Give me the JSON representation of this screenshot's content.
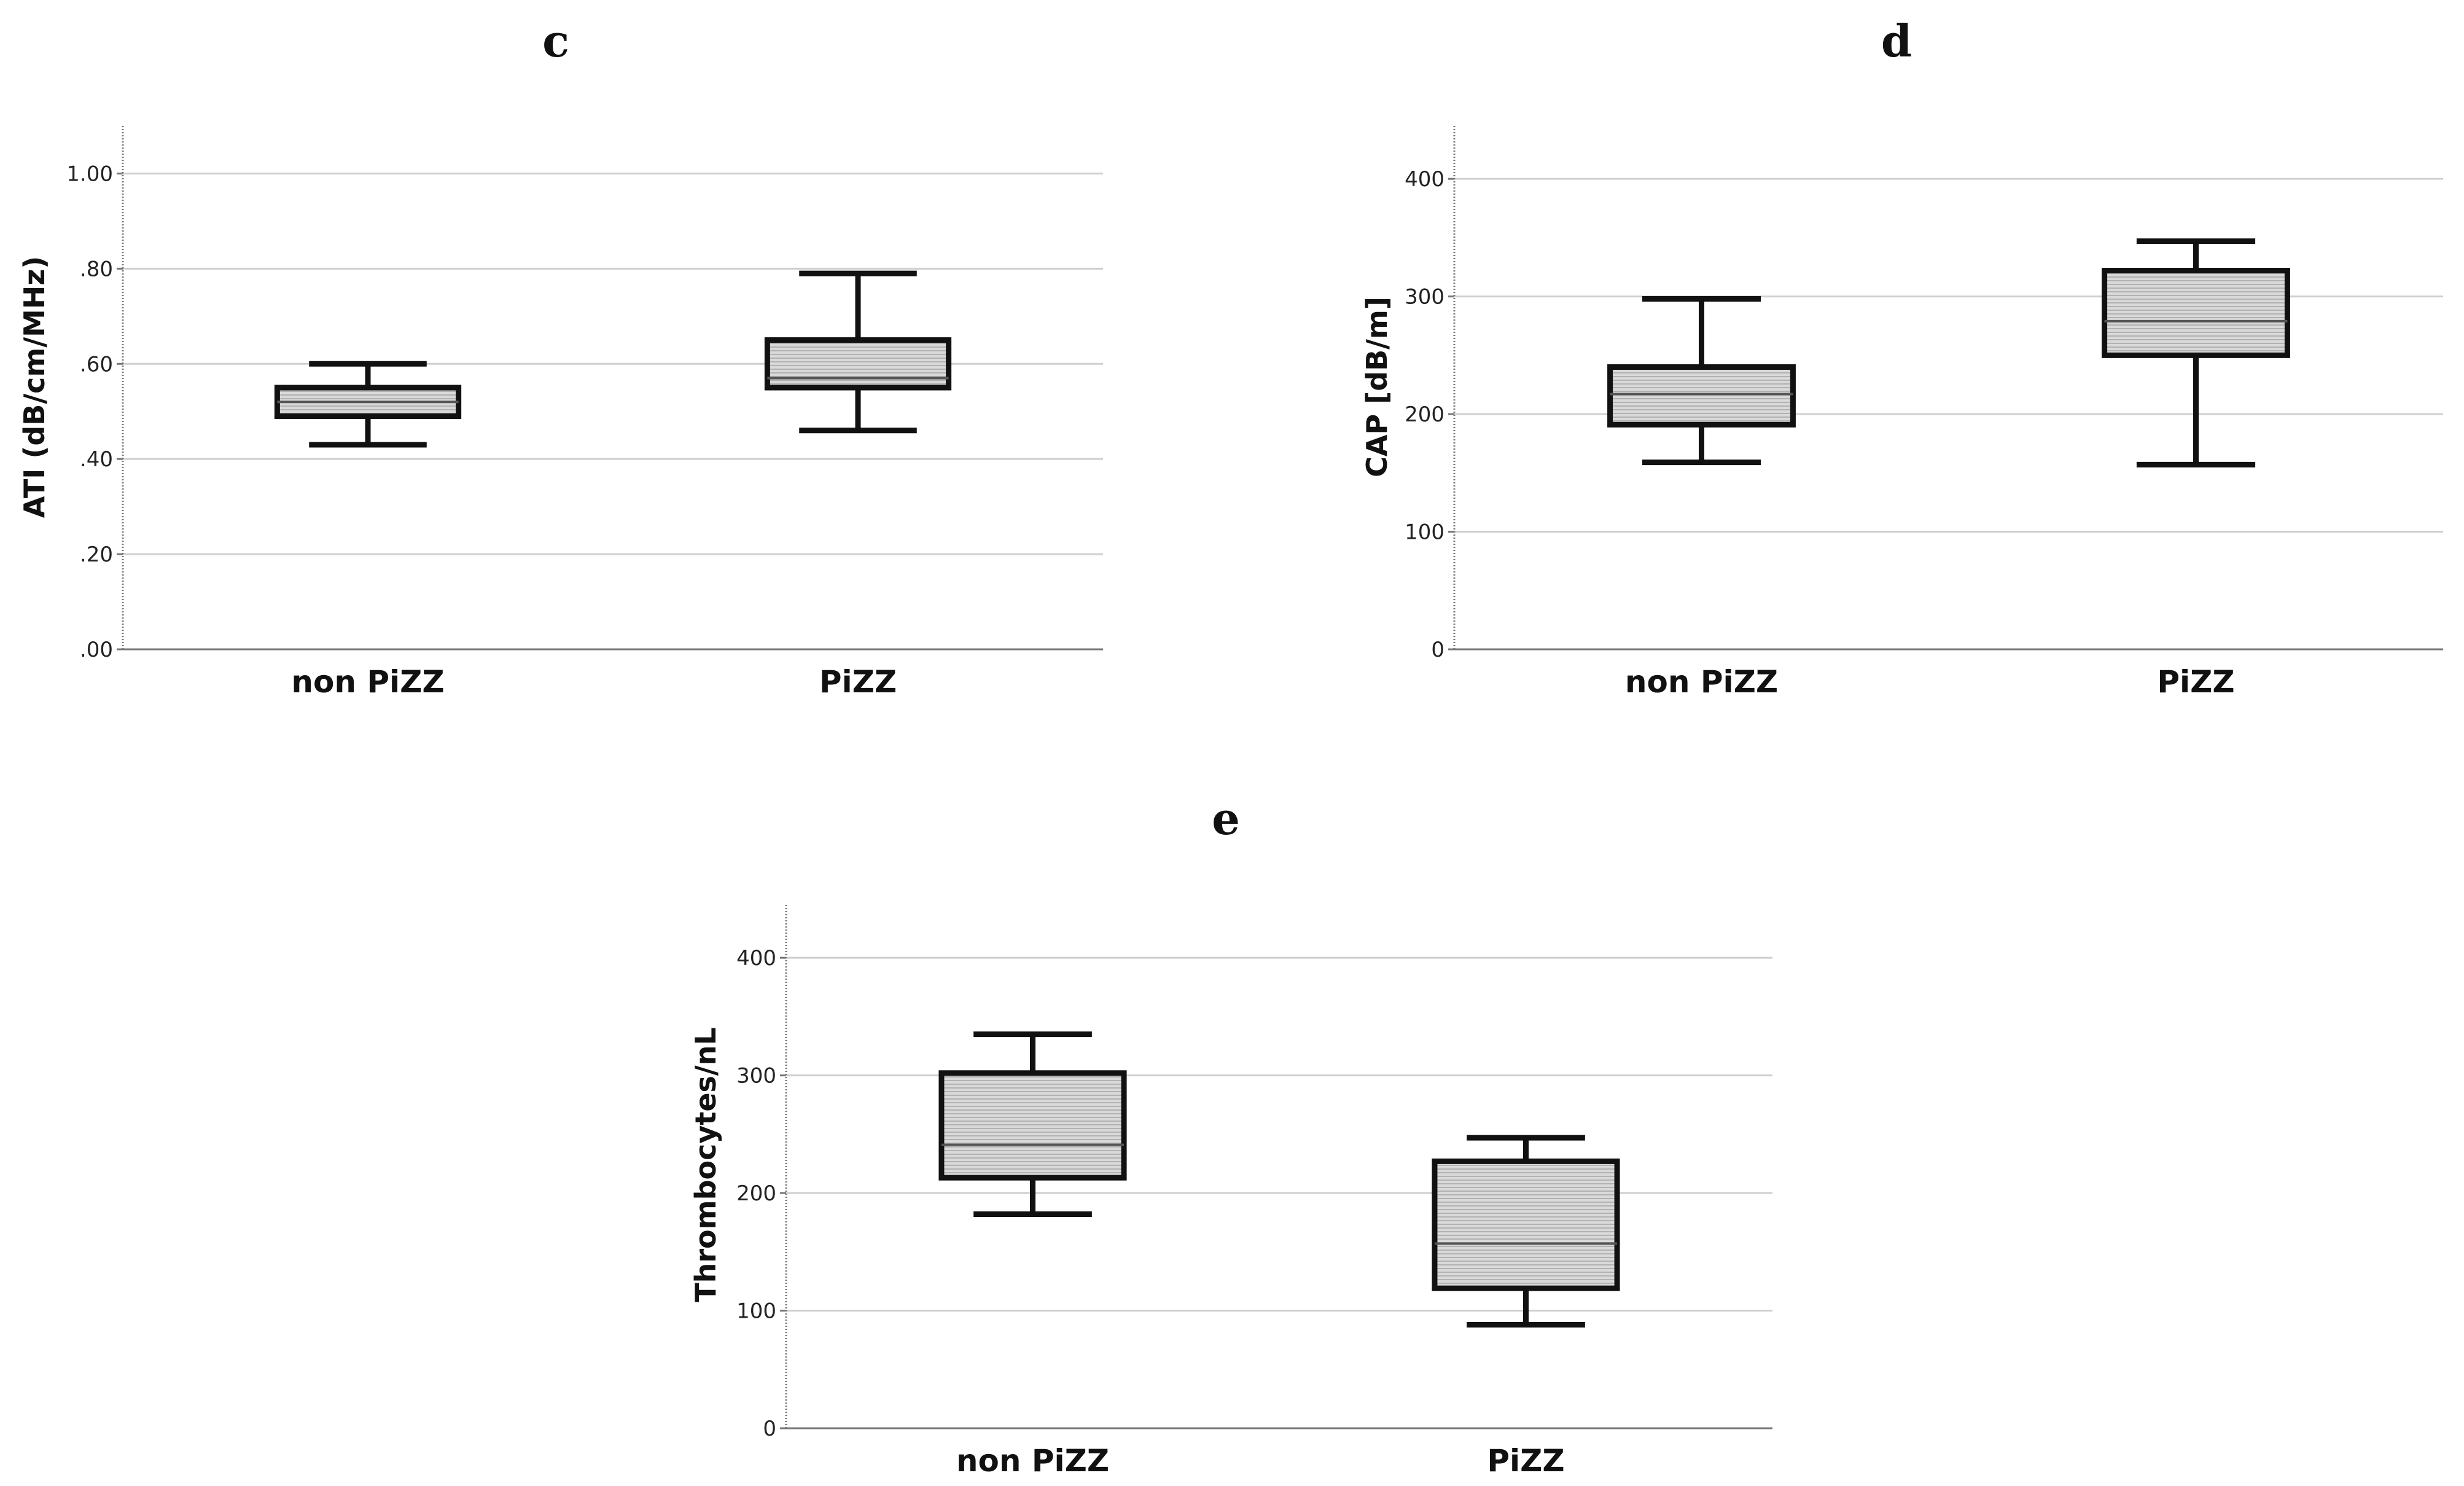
{
  "colors": {
    "grid": "#cfcfcf",
    "axis": "#777777",
    "box_fill": "#d9d9d9",
    "hatch": "#9a9a9a",
    "stroke": "#111111"
  },
  "chart_data": [
    {
      "panel": "c",
      "type": "boxplot",
      "ylabel": "ATI (dB/cm/MHz)",
      "ylim": [
        0,
        1.1
      ],
      "yticks": [
        0,
        0.2,
        0.4,
        0.6,
        0.8,
        1.0
      ],
      "ytick_labels": [
        ".00",
        ".20",
        ".40",
        ".60",
        ".80",
        "1.00"
      ],
      "categories": [
        "non PiZZ",
        "PiZZ"
      ],
      "boxes": [
        {
          "min": 0.43,
          "q1": 0.49,
          "median": 0.52,
          "q3": 0.55,
          "max": 0.6
        },
        {
          "min": 0.46,
          "q1": 0.55,
          "median": 0.57,
          "q3": 0.65,
          "max": 0.79
        }
      ]
    },
    {
      "panel": "d",
      "type": "boxplot",
      "ylabel": "CAP [dB/m]",
      "ylim": [
        0,
        445
      ],
      "yticks": [
        0,
        100,
        200,
        300,
        400
      ],
      "ytick_labels": [
        "0",
        "100",
        "200",
        "300",
        "400"
      ],
      "categories": [
        "non PiZZ",
        "PiZZ"
      ],
      "boxes": [
        {
          "min": 159,
          "q1": 191,
          "median": 217,
          "q3": 240,
          "max": 298
        },
        {
          "min": 157,
          "q1": 250,
          "median": 279,
          "q3": 322,
          "max": 347
        }
      ]
    },
    {
      "panel": "e",
      "type": "boxplot",
      "ylabel": "Thrombocytes/nL",
      "ylim": [
        0,
        445
      ],
      "yticks": [
        0,
        100,
        200,
        300,
        400
      ],
      "ytick_labels": [
        "0",
        "100",
        "200",
        "300",
        "400"
      ],
      "categories": [
        "non PiZZ",
        "PiZZ"
      ],
      "boxes": [
        {
          "min": 182,
          "q1": 213,
          "median": 241,
          "q3": 302,
          "max": 335
        },
        {
          "min": 88,
          "q1": 119,
          "median": 157,
          "q3": 227,
          "max": 247
        }
      ]
    }
  ]
}
